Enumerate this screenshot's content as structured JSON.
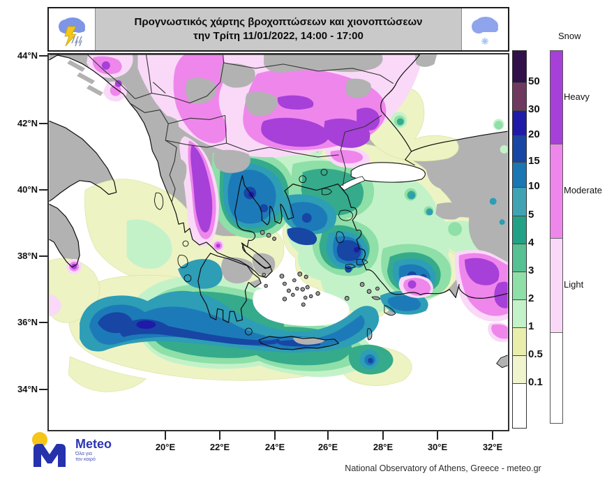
{
  "title": {
    "line1": "Προγνωστικός χάρτης βροχοπτώσεων και χιονοπτώσεων",
    "line2": "την Τρίτη 11/01/2022, 14:00 - 17:00"
  },
  "axes": {
    "lat_labels": [
      "44°N",
      "42°N",
      "40°N",
      "38°N",
      "36°N",
      "34°N"
    ],
    "lon_labels": [
      "20°E",
      "22°E",
      "24°E",
      "26°E",
      "28°E",
      "30°E",
      "32°E"
    ]
  },
  "legend": {
    "rain_values": [
      "50",
      "30",
      "20",
      "15",
      "10",
      "5",
      "4",
      "3",
      "2",
      "1",
      "0.5",
      "0.1"
    ],
    "rain_colors": [
      "#321049",
      "#703a60",
      "#201aa8",
      "#1746a5",
      "#1b76b4",
      "#3fa3b4",
      "#23a186",
      "#56c193",
      "#8fdfa8",
      "#c3f2c9",
      "#e9efab",
      "#f1f5cd",
      "#ffffff"
    ],
    "snow_title": "Snow",
    "snow_classes": [
      {
        "label": "Heavy",
        "color": "#a640d8"
      },
      {
        "label": "Moderate",
        "color": "#ef86ec"
      },
      {
        "label": "Light",
        "color": "#f9d9f7"
      },
      {
        "label": "",
        "color": "#ffffff"
      }
    ]
  },
  "logo": {
    "name": "Meteo",
    "tagline1": "Όλα για",
    "tagline2": "τον καιρό"
  },
  "attribution": "National Observatory of Athens, Greece - meteo.gr"
}
